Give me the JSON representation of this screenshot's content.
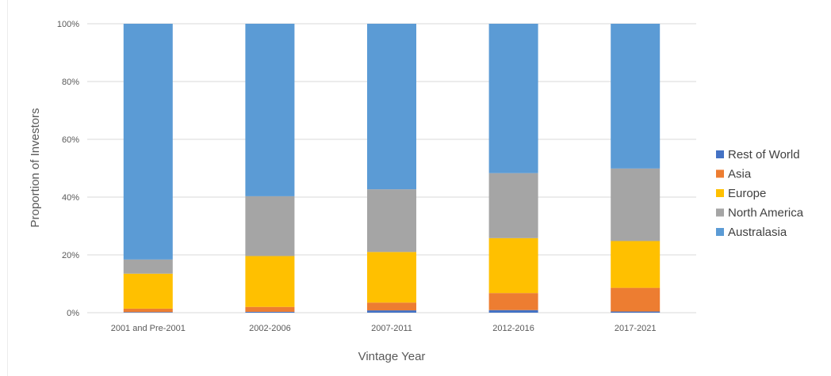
{
  "chart_data": {
    "type": "bar",
    "stacked": true,
    "percent_stacked": true,
    "title": "",
    "xlabel": "Vintage Year",
    "ylabel": "Proportion of Investors",
    "categories": [
      "2001 and Pre-2001",
      "2002-2006",
      "2007-2011",
      "2012-2016",
      "2017-2021"
    ],
    "ylim": [
      0,
      100
    ],
    "yticks": [
      "0%",
      "20%",
      "40%",
      "60%",
      "80%",
      "100%"
    ],
    "grid": true,
    "legend_position": "right",
    "series": [
      {
        "name": "Rest of World",
        "color": "#4472C4",
        "values": [
          0.2,
          0.3,
          0.8,
          0.9,
          0.4
        ]
      },
      {
        "name": "Asia",
        "color": "#ED7D31",
        "values": [
          1.2,
          1.7,
          2.7,
          5.9,
          8.2
        ]
      },
      {
        "name": "Europe",
        "color": "#FFC000",
        "values": [
          12.1,
          17.6,
          17.5,
          19.0,
          16.2
        ]
      },
      {
        "name": "North America",
        "color": "#A5A5A5",
        "values": [
          4.9,
          20.7,
          21.7,
          22.5,
          25.1
        ]
      },
      {
        "name": "Australasia",
        "color": "#5B9BD5",
        "values": [
          81.6,
          59.7,
          57.3,
          51.7,
          50.1
        ]
      }
    ]
  }
}
